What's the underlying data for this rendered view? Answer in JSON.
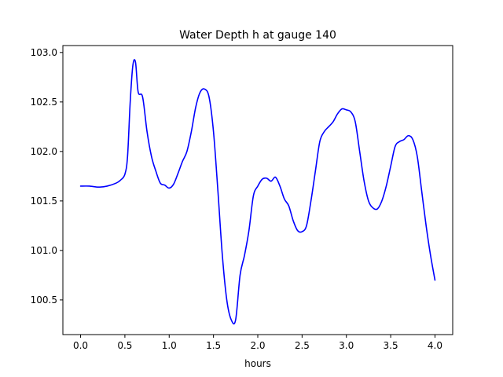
{
  "chart_data": {
    "type": "line",
    "title": "Water Depth h at gauge 140",
    "xlabel": "hours",
    "ylabel": "",
    "xlim": [
      -0.2,
      4.2
    ],
    "ylim": [
      100.15,
      103.07
    ],
    "xticks": [
      0.0,
      0.5,
      1.0,
      1.5,
      2.0,
      2.5,
      3.0,
      3.5,
      4.0
    ],
    "xtick_labels": [
      "0.0",
      "0.5",
      "1.0",
      "1.5",
      "2.0",
      "2.5",
      "3.0",
      "3.5",
      "4.0"
    ],
    "yticks": [
      100.5,
      101.0,
      101.5,
      102.0,
      102.5,
      103.0
    ],
    "ytick_labels": [
      "100.5",
      "101.0",
      "101.5",
      "102.0",
      "102.5",
      "103.0"
    ],
    "grid": false,
    "series": [
      {
        "color": "#0000ff",
        "x": [
          0.0,
          0.1,
          0.2,
          0.3,
          0.4,
          0.45,
          0.5,
          0.53,
          0.56,
          0.59,
          0.62,
          0.65,
          0.7,
          0.75,
          0.8,
          0.85,
          0.9,
          0.95,
          1.0,
          1.05,
          1.1,
          1.15,
          1.2,
          1.25,
          1.3,
          1.35,
          1.4,
          1.45,
          1.5,
          1.55,
          1.6,
          1.65,
          1.7,
          1.75,
          1.8,
          1.85,
          1.9,
          1.95,
          2.0,
          2.05,
          2.1,
          2.15,
          2.2,
          2.25,
          2.3,
          2.35,
          2.4,
          2.45,
          2.5,
          2.55,
          2.6,
          2.65,
          2.7,
          2.75,
          2.8,
          2.85,
          2.9,
          2.95,
          3.0,
          3.05,
          3.1,
          3.15,
          3.2,
          3.25,
          3.3,
          3.35,
          3.4,
          3.45,
          3.5,
          3.55,
          3.6,
          3.65,
          3.7,
          3.75,
          3.8,
          3.85,
          3.9,
          3.95,
          4.0
        ],
        "y": [
          101.65,
          101.65,
          101.64,
          101.65,
          101.68,
          101.71,
          101.77,
          101.95,
          102.5,
          102.87,
          102.9,
          102.6,
          102.55,
          102.2,
          101.95,
          101.8,
          101.68,
          101.66,
          101.63,
          101.67,
          101.78,
          101.9,
          102.0,
          102.2,
          102.45,
          102.6,
          102.63,
          102.55,
          102.2,
          101.6,
          100.95,
          100.5,
          100.3,
          100.3,
          100.75,
          100.95,
          101.2,
          101.55,
          101.65,
          101.72,
          101.73,
          101.7,
          101.74,
          101.65,
          101.52,
          101.45,
          101.3,
          101.2,
          101.19,
          101.25,
          101.5,
          101.8,
          102.1,
          102.2,
          102.25,
          102.3,
          102.38,
          102.43,
          102.42,
          102.4,
          102.3,
          102.0,
          101.7,
          101.5,
          101.43,
          101.42,
          101.5,
          101.65,
          101.85,
          102.05,
          102.1,
          102.12,
          102.16,
          102.12,
          101.95,
          101.6,
          101.25,
          100.95,
          100.7
        ]
      }
    ]
  }
}
